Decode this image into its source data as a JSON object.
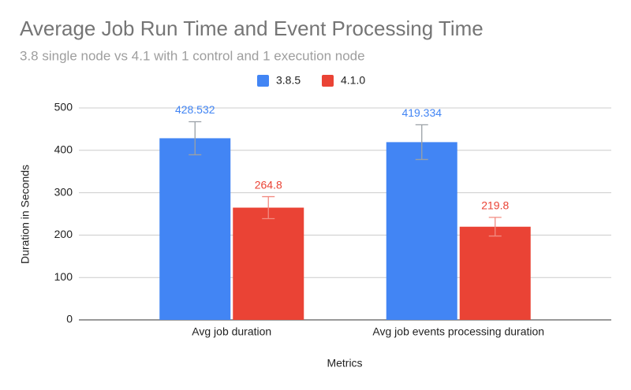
{
  "chart_data": {
    "type": "bar",
    "title": "Average Job Run Time and Event Processing Time",
    "subtitle": "3.8 single node vs 4.1 with 1 control and 1 execution node",
    "x_label": "Metrics",
    "y_label": "Duration in Seconds",
    "categories": [
      "Avg job duration",
      "Avg job events processing duration"
    ],
    "series": [
      {
        "name": "3.8.5",
        "color": "#4285f4",
        "values": [
          428.532,
          419.334
        ],
        "errors": [
          39,
          41
        ]
      },
      {
        "name": "4.1.0",
        "color": "#ea4335",
        "values": [
          264.8,
          219.8
        ],
        "errors": [
          26,
          22
        ]
      }
    ],
    "ylim": [
      0,
      500
    ],
    "yticks": [
      0,
      100,
      200,
      300,
      400,
      500
    ],
    "grid": true,
    "legend": "top"
  }
}
